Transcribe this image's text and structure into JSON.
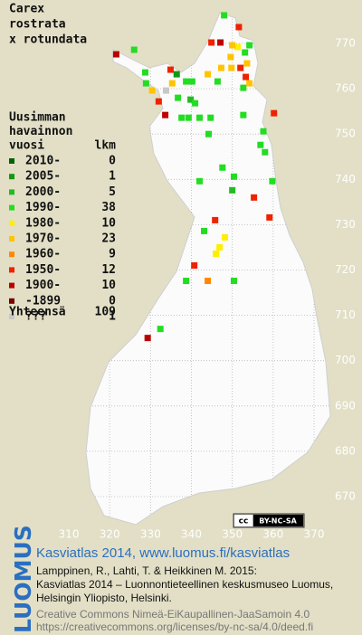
{
  "chart_data": {
    "type": "grid-map",
    "title": [
      "Carex",
      "rostrata",
      "x rotundata"
    ],
    "legend_title": [
      "Uusimman",
      "havainnon",
      "vuosi"
    ],
    "count_header": "lkm",
    "total_label": "Yhteensä",
    "total": 109,
    "xticks": [
      310,
      320,
      330,
      340,
      350,
      360,
      370
    ],
    "yticks": [
      670,
      680,
      690,
      700,
      710,
      720,
      730,
      740,
      750,
      760,
      770
    ],
    "grid": true,
    "series": [
      {
        "name": "2010-",
        "count": 0,
        "color": "#006400",
        "x": [],
        "y": []
      },
      {
        "name": "2005-",
        "count": 1,
        "color": "#119911",
        "x": [
          336.4
        ],
        "y": [
          763.2
        ]
      },
      {
        "name": "2000-",
        "count": 5,
        "color": "#22bb22",
        "x": [
          339.8,
          350.0
        ],
        "y": [
          757.6,
          737.6
        ]
      },
      {
        "name": "1990-",
        "count": 38,
        "color": "#22dd22",
        "x": [
          348.0,
          354.2,
          353.1,
          352.7,
          346.4,
          338.7,
          340.2,
          328.7,
          328.9,
          326.0,
          336.7,
          340.9,
          337.6,
          339.3,
          342.0,
          344.7,
          352.7,
          357.6,
          344.2,
          356.9,
          358.0,
          347.6,
          350.4,
          342.0,
          359.8,
          343.1,
          338.7,
          350.4,
          332.4
        ],
        "y": [
          776.2,
          769.6,
          768.0,
          760.2,
          761.6,
          761.6,
          761.6,
          763.6,
          761.2,
          768.6,
          758.0,
          756.8,
          753.6,
          753.6,
          753.6,
          753.6,
          754.2,
          750.6,
          750.0,
          747.6,
          746.0,
          742.6,
          740.6,
          739.6,
          739.6,
          728.6,
          717.6,
          717.6,
          707.0
        ]
      },
      {
        "name": "1980-",
        "count": 10,
        "color": "#ffee00",
        "x": [
          351.3,
          348.2,
          346.9,
          346.0
        ],
        "y": [
          769.2,
          727.2,
          725.0,
          723.6
        ]
      },
      {
        "name": "1970-",
        "count": 23,
        "color": "#ffc400",
        "x": [
          350.0,
          349.6,
          347.3,
          349.8,
          353.6,
          354.2,
          344.0,
          330.4,
          335.3
        ],
        "y": [
          769.6,
          767.0,
          764.6,
          764.6,
          765.6,
          761.2,
          763.2,
          759.6,
          761.2
        ]
      },
      {
        "name": "1960-",
        "count": 9,
        "color": "#ff8800",
        "x": [
          344.0
        ],
        "y": [
          717.6
        ]
      },
      {
        "name": "1950-",
        "count": 12,
        "color": "#ee2200",
        "x": [
          351.6,
          344.9,
          352.0,
          353.3,
          334.9,
          332.0,
          360.2,
          355.3,
          359.1,
          345.8,
          340.7
        ],
        "y": [
          773.6,
          770.2,
          764.6,
          762.6,
          764.2,
          757.2,
          754.6,
          736.0,
          731.6,
          731.0,
          721.0
        ]
      },
      {
        "name": "1900-",
        "count": 10,
        "color": "#bb0000",
        "x": [
          347.1,
          321.6,
          333.6,
          329.3
        ],
        "y": [
          770.2,
          767.6,
          754.2,
          705.0
        ]
      },
      {
        "name": "-1899",
        "count": 0,
        "color": "#770000",
        "x": [],
        "y": []
      },
      {
        "name": "???",
        "count": 1,
        "color": "#c8c8c8",
        "x": [
          333.8
        ],
        "y": [
          759.6
        ]
      }
    ]
  },
  "badge": [
    "cc",
    "BY-NC-SA"
  ],
  "footer": {
    "logo": "LUOMUS",
    "headline": "Kasviatlas 2014, www.luomus.fi/kasviatlas",
    "citation": [
      "Lamppinen, R., Lahti, T. & Heikkinen M. 2015:",
      "Kasviatlas 2014 – Luonnontieteellinen keskusmuseo Luomus,",
      "Helsingin Yliopisto, Helsinki."
    ],
    "license": [
      "Creative Commons Nimeä-EiKaupallinen-JaaSamoin 4.0",
      "https://creativecommons.org/licenses/by-nc-sa/4.0/deed.fi"
    ]
  }
}
